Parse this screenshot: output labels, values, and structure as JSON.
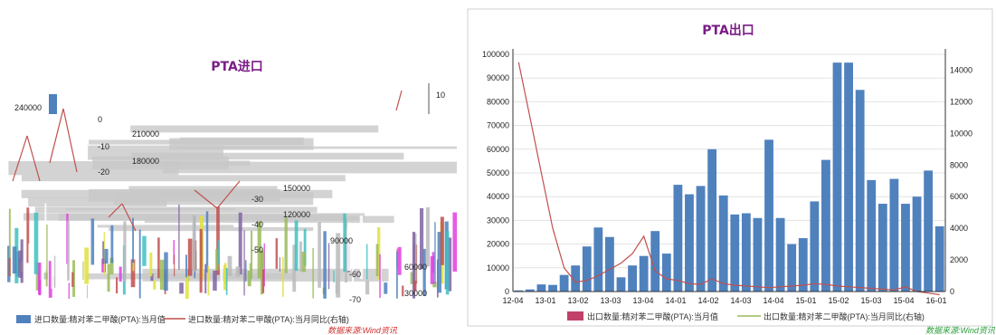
{
  "chart_data": [
    {
      "type": "bar",
      "title": "PTA进口",
      "ylim": [
        0,
        250000
      ],
      "y2lim": [
        -70,
        10
      ],
      "y_ticks": [
        "240000",
        "210000",
        "180000",
        "150000",
        "120000",
        "90000",
        "60000",
        "30000"
      ],
      "y2_ticks": [
        "10",
        "0",
        "-10",
        "-20",
        "-30",
        "-40",
        "-50",
        "-60",
        "-70"
      ],
      "legend": [
        "进口数量:精对苯二甲酸(PTA):当月值",
        "进口数量:精对苯二甲酸(PTA):当月同比(右轴)"
      ],
      "source": "数据来源:Wind资讯"
    },
    {
      "type": "bar",
      "title": "PTA出口",
      "ylim": [
        0,
        100000
      ],
      "y2lim": [
        0,
        15000
      ],
      "y_ticks": [
        "0",
        "10000",
        "20000",
        "30000",
        "40000",
        "50000",
        "60000",
        "70000",
        "80000",
        "90000",
        "100000"
      ],
      "y2_ticks": [
        "0",
        "2000",
        "4000",
        "6000",
        "8000",
        "10000",
        "12000",
        "14000"
      ],
      "x_ticks": [
        "12-04",
        "13-01",
        "13-02",
        "13-03",
        "13-04",
        "14-01",
        "14-02",
        "14-03",
        "14-04",
        "15-01",
        "15-02",
        "15-03",
        "15-04",
        "16-01"
      ],
      "series": [
        {
          "name": "出口数量:精对苯二甲酸(PTA):当月值",
          "values": [
            500,
            900,
            3000,
            2800,
            7000,
            11000,
            19000,
            27000,
            23000,
            6000,
            11000,
            15000,
            25500,
            16000,
            45000,
            41000,
            44500,
            60000,
            40500,
            32500,
            33000,
            31000,
            64000,
            31000,
            20000,
            22500,
            38000,
            55500,
            96500,
            96500,
            85000,
            47000,
            37000,
            47500,
            37000,
            40000,
            51000,
            27500
          ]
        },
        {
          "name": "出口数量:精对苯二甲酸(PTA):当月同比(右轴)",
          "values": [
            14500,
            11000,
            7500,
            4000,
            1500,
            600,
            700,
            1000,
            1400,
            1800,
            2400,
            3500,
            1300,
            800,
            700,
            500,
            450,
            800,
            500,
            400,
            350,
            300,
            250,
            300,
            350,
            400,
            500,
            450,
            350,
            300,
            250,
            200,
            150,
            100,
            300,
            0,
            -100,
            -200
          ]
        }
      ],
      "legend": [
        "出口数量:精对苯二甲酸(PTA):当月值",
        "出口数量:精对苯二甲酸(PTA):当月同比(右轴)"
      ],
      "source": "数据来源:Wind资讯"
    }
  ]
}
